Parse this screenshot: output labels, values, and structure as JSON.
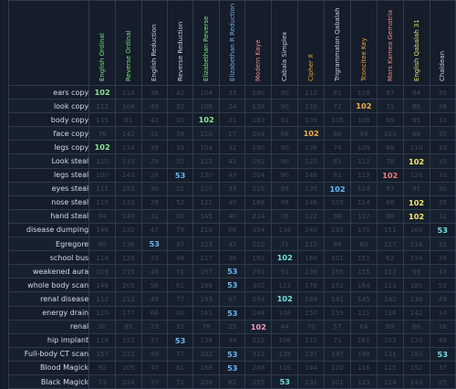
{
  "columns": [
    {
      "name": "English Ordinal",
      "color": "#7be07b"
    },
    {
      "name": "Reverse Ordinal",
      "color": "#7be07b"
    },
    {
      "name": "English Reduction",
      "color": "#c9d2e0"
    },
    {
      "name": "Reverse Reduction",
      "color": "#c9d2e0"
    },
    {
      "name": "Elizabethan Reverse",
      "color": "#7be07b"
    },
    {
      "name": "Elizabethan R Reduction",
      "color": "#7aa9e8"
    },
    {
      "name": "Modern Kaye",
      "color": "#f08a8a"
    },
    {
      "name": "Cabala Simplex",
      "color": "#c9d2e0"
    },
    {
      "name": "Cipher X",
      "color": "#f2a23a"
    },
    {
      "name": "Trigrammaton Qabalah",
      "color": "#c9d2e0"
    },
    {
      "name": "Tconcitee Key",
      "color": "#f2a23a"
    },
    {
      "name": "Mars Kamea Gematria",
      "color": "#f08a8a"
    },
    {
      "name": "English Qabalah 31",
      "color": "#e8e07a"
    },
    {
      "name": "Chaldean",
      "color": "#c9d2e0"
    }
  ],
  "highlight_colors": {
    "green": "#8fe68f",
    "blue": "#6ab7f5",
    "yellow": "#f7e66b",
    "orange": "#f5b04a",
    "red": "#f07a7a",
    "pink": "#f59ab8",
    "cyan": "#6fe0e0"
  },
  "rows": [
    {
      "label": "ears copy",
      "cells": [
        {
          "v": "102",
          "h": "green"
        },
        {
          "v": "114"
        },
        {
          "v": "39"
        },
        {
          "v": "42"
        },
        {
          "v": "104"
        },
        {
          "v": "33"
        },
        {
          "v": "180"
        },
        {
          "v": "90"
        },
        {
          "v": "112"
        },
        {
          "v": "81"
        },
        {
          "v": "116"
        },
        {
          "v": "87"
        },
        {
          "v": "84"
        },
        {
          "v": "30"
        }
      ]
    },
    {
      "label": "look copy",
      "cells": [
        {
          "v": "112"
        },
        {
          "v": "104"
        },
        {
          "v": "40"
        },
        {
          "v": "32"
        },
        {
          "v": "106"
        },
        {
          "v": "24"
        },
        {
          "v": "138"
        },
        {
          "v": "90"
        },
        {
          "v": "110"
        },
        {
          "v": "72"
        },
        {
          "v": "102",
          "h": "orange"
        },
        {
          "v": "71"
        },
        {
          "v": "86"
        },
        {
          "v": "38"
        }
      ]
    },
    {
      "label": "body copy",
      "cells": [
        {
          "v": "135"
        },
        {
          "v": "81"
        },
        {
          "v": "42"
        },
        {
          "v": "30"
        },
        {
          "v": "102",
          "h": "green"
        },
        {
          "v": "21"
        },
        {
          "v": "183"
        },
        {
          "v": "91"
        },
        {
          "v": "109"
        },
        {
          "v": "105"
        },
        {
          "v": "108"
        },
        {
          "v": "69"
        },
        {
          "v": "95"
        },
        {
          "v": "33"
        }
      ]
    },
    {
      "label": "face copy",
      "cells": [
        {
          "v": "76"
        },
        {
          "v": "142"
        },
        {
          "v": "31"
        },
        {
          "v": "38"
        },
        {
          "v": "110"
        },
        {
          "v": "17"
        },
        {
          "v": "204"
        },
        {
          "v": "66"
        },
        {
          "v": "102",
          "h": "orange"
        },
        {
          "v": "66"
        },
        {
          "v": "94"
        },
        {
          "v": "103"
        },
        {
          "v": "68"
        },
        {
          "v": "35"
        }
      ]
    },
    {
      "label": "legs copy",
      "cells": [
        {
          "v": "102",
          "h": "green"
        },
        {
          "v": "114"
        },
        {
          "v": "39"
        },
        {
          "v": "33"
        },
        {
          "v": "104"
        },
        {
          "v": "32"
        },
        {
          "v": "180"
        },
        {
          "v": "90"
        },
        {
          "v": "136"
        },
        {
          "v": "74"
        },
        {
          "v": "109"
        },
        {
          "v": "88"
        },
        {
          "v": "110"
        },
        {
          "v": "33"
        }
      ]
    },
    {
      "label": "Look steal",
      "cells": [
        {
          "v": "110"
        },
        {
          "v": "133"
        },
        {
          "v": "29"
        },
        {
          "v": "52"
        },
        {
          "v": "122"
        },
        {
          "v": "41"
        },
        {
          "v": "162"
        },
        {
          "v": "90"
        },
        {
          "v": "122"
        },
        {
          "v": "81"
        },
        {
          "v": "112"
        },
        {
          "v": "78"
        },
        {
          "v": "102",
          "h": "yellow"
        },
        {
          "v": "35"
        }
      ]
    },
    {
      "label": "legs steal",
      "cells": [
        {
          "v": "100"
        },
        {
          "v": "143"
        },
        {
          "v": "28"
        },
        {
          "v": "53",
          "h": "blue"
        },
        {
          "v": "130"
        },
        {
          "v": "43"
        },
        {
          "v": "204"
        },
        {
          "v": "90"
        },
        {
          "v": "148"
        },
        {
          "v": "81"
        },
        {
          "v": "119"
        },
        {
          "v": "102",
          "h": "red"
        },
        {
          "v": "126"
        },
        {
          "v": "30"
        }
      ]
    },
    {
      "label": "eyes steal",
      "cells": [
        {
          "v": "111"
        },
        {
          "v": "152"
        },
        {
          "v": "30"
        },
        {
          "v": "51"
        },
        {
          "v": "120"
        },
        {
          "v": "33"
        },
        {
          "v": "215"
        },
        {
          "v": "99"
        },
        {
          "v": "135"
        },
        {
          "v": "102",
          "h": "blue"
        },
        {
          "v": "114"
        },
        {
          "v": "97"
        },
        {
          "v": "91"
        },
        {
          "v": "30"
        }
      ]
    },
    {
      "label": "nose steal",
      "cells": [
        {
          "v": "110"
        },
        {
          "v": "133"
        },
        {
          "v": "29"
        },
        {
          "v": "52"
        },
        {
          "v": "121"
        },
        {
          "v": "40"
        },
        {
          "v": "188"
        },
        {
          "v": "98"
        },
        {
          "v": "148"
        },
        {
          "v": "105"
        },
        {
          "v": "114"
        },
        {
          "v": "88"
        },
        {
          "v": "102",
          "h": "yellow"
        },
        {
          "v": "35"
        }
      ]
    },
    {
      "label": "hand steal",
      "cells": [
        {
          "v": "94"
        },
        {
          "v": "149"
        },
        {
          "v": "31"
        },
        {
          "v": "50"
        },
        {
          "v": "145"
        },
        {
          "v": "40"
        },
        {
          "v": "214"
        },
        {
          "v": "76"
        },
        {
          "v": "122"
        },
        {
          "v": "98"
        },
        {
          "v": "127"
        },
        {
          "v": "88"
        },
        {
          "v": "102",
          "h": "yellow"
        },
        {
          "v": "32"
        }
      ]
    },
    {
      "label": "disease dumping",
      "cells": [
        {
          "v": "146"
        },
        {
          "v": "232"
        },
        {
          "v": "47"
        },
        {
          "v": "79"
        },
        {
          "v": "210"
        },
        {
          "v": "66"
        },
        {
          "v": "354"
        },
        {
          "v": "134"
        },
        {
          "v": "240"
        },
        {
          "v": "192"
        },
        {
          "v": "170"
        },
        {
          "v": "151"
        },
        {
          "v": "160"
        },
        {
          "v": "53",
          "h": "cyan"
        }
      ]
    },
    {
      "label": "Egregore",
      "cells": [
        {
          "v": "80"
        },
        {
          "v": "136"
        },
        {
          "v": "53",
          "h": "blue"
        },
        {
          "v": "37"
        },
        {
          "v": "123"
        },
        {
          "v": "42"
        },
        {
          "v": "210"
        },
        {
          "v": "71"
        },
        {
          "v": "112"
        },
        {
          "v": "99"
        },
        {
          "v": "60"
        },
        {
          "v": "127"
        },
        {
          "v": "116"
        },
        {
          "v": "32"
        }
      ]
    },
    {
      "label": "school bus",
      "cells": [
        {
          "v": "114"
        },
        {
          "v": "129"
        },
        {
          "v": "33"
        },
        {
          "v": "48"
        },
        {
          "v": "117"
        },
        {
          "v": "36"
        },
        {
          "v": "192"
        },
        {
          "v": "102",
          "h": "cyan"
        },
        {
          "v": "160"
        },
        {
          "v": "101"
        },
        {
          "v": "151"
        },
        {
          "v": "62"
        },
        {
          "v": "134"
        },
        {
          "v": "39"
        }
      ]
    },
    {
      "label": "weakened aura",
      "cells": [
        {
          "v": "109"
        },
        {
          "v": "215"
        },
        {
          "v": "46"
        },
        {
          "v": "71"
        },
        {
          "v": "197"
        },
        {
          "v": "53",
          "h": "blue"
        },
        {
          "v": "291"
        },
        {
          "v": "91"
        },
        {
          "v": "139"
        },
        {
          "v": "165"
        },
        {
          "v": "115"
        },
        {
          "v": "123"
        },
        {
          "v": "99"
        },
        {
          "v": "43"
        }
      ]
    },
    {
      "label": "whole body scan",
      "cells": [
        {
          "v": "146"
        },
        {
          "v": "205"
        },
        {
          "v": "56"
        },
        {
          "v": "61"
        },
        {
          "v": "186"
        },
        {
          "v": "53",
          "h": "blue"
        },
        {
          "v": "302"
        },
        {
          "v": "123"
        },
        {
          "v": "178"
        },
        {
          "v": "152"
        },
        {
          "v": "164"
        },
        {
          "v": "113"
        },
        {
          "v": "180"
        },
        {
          "v": "52"
        }
      ]
    },
    {
      "label": "renal disease",
      "cells": [
        {
          "v": "112"
        },
        {
          "v": "212"
        },
        {
          "v": "49"
        },
        {
          "v": "77"
        },
        {
          "v": "193"
        },
        {
          "v": "67"
        },
        {
          "v": "294"
        },
        {
          "v": "102",
          "h": "cyan"
        },
        {
          "v": "184"
        },
        {
          "v": "141"
        },
        {
          "v": "145"
        },
        {
          "v": "142"
        },
        {
          "v": "136"
        },
        {
          "v": "49"
        }
      ]
    },
    {
      "label": "energy drain",
      "cells": [
        {
          "v": "120"
        },
        {
          "v": "177"
        },
        {
          "v": "66"
        },
        {
          "v": "60"
        },
        {
          "v": "161"
        },
        {
          "v": "53",
          "h": "blue"
        },
        {
          "v": "248"
        },
        {
          "v": "108"
        },
        {
          "v": "150"
        },
        {
          "v": "159"
        },
        {
          "v": "121"
        },
        {
          "v": "136"
        },
        {
          "v": "142"
        },
        {
          "v": "34"
        }
      ]
    },
    {
      "label": "renal",
      "cells": [
        {
          "v": "50"
        },
        {
          "v": "85"
        },
        {
          "v": "23"
        },
        {
          "v": "31"
        },
        {
          "v": "78"
        },
        {
          "v": "25"
        },
        {
          "v": "102",
          "h": "pink"
        },
        {
          "v": "44"
        },
        {
          "v": "70"
        },
        {
          "v": "57"
        },
        {
          "v": "64"
        },
        {
          "v": "69"
        },
        {
          "v": "66"
        },
        {
          "v": "16"
        }
      ]
    },
    {
      "label": "hip implant",
      "cells": [
        {
          "v": "118"
        },
        {
          "v": "152"
        },
        {
          "v": "37"
        },
        {
          "v": "53",
          "h": "blue"
        },
        {
          "v": "138"
        },
        {
          "v": "49"
        },
        {
          "v": "222"
        },
        {
          "v": "106"
        },
        {
          "v": "172"
        },
        {
          "v": "71"
        },
        {
          "v": "161"
        },
        {
          "v": "103"
        },
        {
          "v": "120"
        },
        {
          "v": "48"
        }
      ]
    },
    {
      "label": "Full-body CT scan",
      "cells": [
        {
          "v": "157"
        },
        {
          "v": "221"
        },
        {
          "v": "49"
        },
        {
          "v": "77"
        },
        {
          "v": "202"
        },
        {
          "v": "53",
          "h": "blue"
        },
        {
          "v": "313"
        },
        {
          "v": "139"
        },
        {
          "v": "197"
        },
        {
          "v": "187"
        },
        {
          "v": "198"
        },
        {
          "v": "131"
        },
        {
          "v": "183"
        },
        {
          "v": "53",
          "h": "cyan"
        }
      ]
    },
    {
      "label": "Blood Magick",
      "cells": [
        {
          "v": "92"
        },
        {
          "v": "205"
        },
        {
          "v": "47"
        },
        {
          "v": "61"
        },
        {
          "v": "188"
        },
        {
          "v": "53",
          "h": "blue"
        },
        {
          "v": "248"
        },
        {
          "v": "116"
        },
        {
          "v": "144"
        },
        {
          "v": "120"
        },
        {
          "v": "116"
        },
        {
          "v": "125"
        },
        {
          "v": "152"
        },
        {
          "v": "37"
        }
      ]
    },
    {
      "label": "Black Magick",
      "cells": [
        {
          "v": "73"
        },
        {
          "v": "224"
        },
        {
          "v": "37"
        },
        {
          "v": "71"
        },
        {
          "v": "208"
        },
        {
          "v": "62"
        },
        {
          "v": "255"
        },
        {
          "v": "53",
          "h": "cyan"
        },
        {
          "v": "131"
        },
        {
          "v": "101"
        },
        {
          "v": "123"
        },
        {
          "v": "114"
        },
        {
          "v": "143"
        },
        {
          "v": "25"
        }
      ]
    }
  ]
}
